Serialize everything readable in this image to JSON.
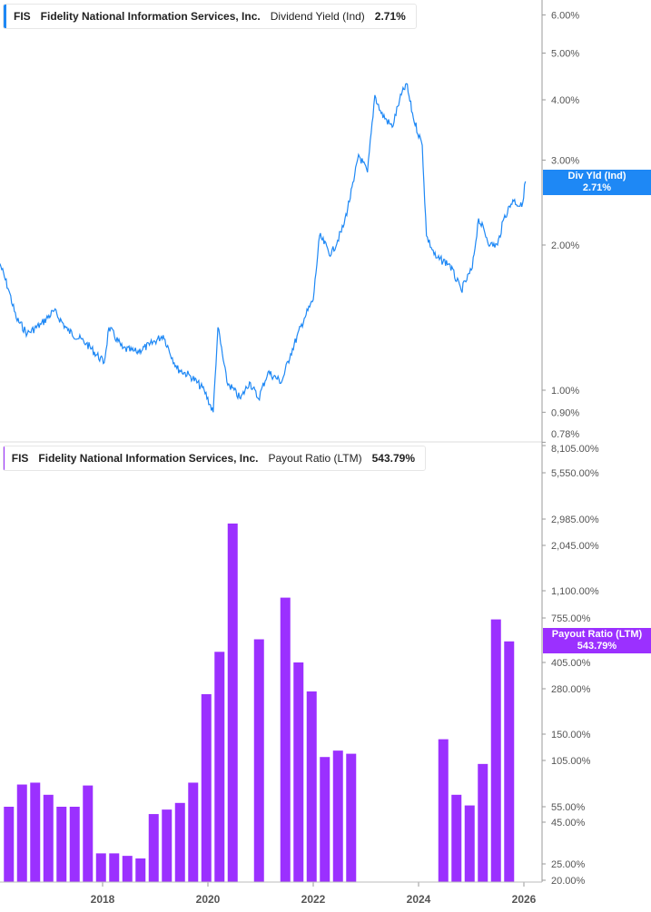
{
  "chart_data": [
    {
      "type": "line",
      "legend": {
        "ticker": "FIS",
        "company": "Fidelity National Information Services, Inc.",
        "metric": "Dividend Yield (Ind)",
        "value": "2.71%"
      },
      "price_tag": {
        "label": "Div Yld (Ind)",
        "value": "2.71%"
      },
      "color": "#1E88F5",
      "y_scale": "log",
      "y_ticks": [
        "6.00%",
        "5.00%",
        "4.00%",
        "3.00%",
        "2.00%",
        "1.00%",
        "0.90%",
        "0.78%"
      ],
      "y_tick_values": [
        6,
        5,
        4,
        3,
        2,
        1,
        0.9,
        0.78
      ],
      "x": [
        2016.05,
        2016.22,
        2016.36,
        2016.57,
        2016.83,
        2017.08,
        2017.34,
        2017.69,
        2018.03,
        2018.12,
        2018.38,
        2018.64,
        2018.89,
        2019.15,
        2019.41,
        2019.67,
        2019.93,
        2020.1,
        2020.19,
        2020.36,
        2020.62,
        2020.79,
        2020.96,
        2021.14,
        2021.4,
        2021.57,
        2021.83,
        2022.0,
        2022.12,
        2022.34,
        2022.57,
        2022.77,
        2022.86,
        2023.03,
        2023.17,
        2023.29,
        2023.5,
        2023.64,
        2023.77,
        2023.9,
        2024.07,
        2024.15,
        2024.33,
        2024.58,
        2024.81,
        2025.02,
        2025.14,
        2025.36,
        2025.5,
        2025.62,
        2025.79,
        2025.96,
        2026.03
      ],
      "y": [
        1.83,
        1.61,
        1.41,
        1.31,
        1.37,
        1.46,
        1.33,
        1.25,
        1.14,
        1.35,
        1.22,
        1.2,
        1.24,
        1.3,
        1.11,
        1.07,
        1.0,
        0.9,
        1.35,
        1.04,
        0.96,
        1.04,
        0.96,
        1.09,
        1.04,
        1.19,
        1.41,
        1.54,
        2.09,
        1.91,
        2.18,
        2.71,
        3.08,
        2.83,
        4.09,
        3.75,
        3.51,
        4.0,
        4.32,
        3.67,
        3.22,
        2.09,
        1.88,
        1.83,
        1.61,
        1.79,
        2.27,
        2.0,
        2.0,
        2.27,
        2.48,
        2.4,
        2.71
      ]
    },
    {
      "type": "bar",
      "legend": {
        "ticker": "FIS",
        "company": "Fidelity National Information Services, Inc.",
        "metric": "Payout Ratio (LTM)",
        "value": "543.79%"
      },
      "price_tag": {
        "label": "Payout Ratio (LTM)",
        "value": "543.79%"
      },
      "color": "#9B30FF",
      "y_ticks": [
        "8,105.00%",
        "5,550.00%",
        "2,985.00%",
        "2,045.00%",
        "1,100.00%",
        "755.00%",
        "405.00%",
        "280.00%",
        "150.00%",
        "105.00%",
        "55.00%",
        "45.00%",
        "25.00%",
        "20.00%"
      ],
      "y_tick_values": [
        8105,
        5550,
        2985,
        2045,
        1100,
        755,
        405,
        280,
        150,
        105,
        55,
        45,
        25,
        20
      ],
      "x_start": 2016.22,
      "x_step_years": 0.25,
      "values": [
        55,
        75,
        77,
        65,
        55,
        55,
        74,
        29,
        29,
        28,
        27,
        50,
        53,
        58,
        77,
        260,
        470,
        2800,
        null,
        560,
        null,
        1000,
        405,
        270,
        110,
        120,
        115,
        null,
        null,
        null,
        null,
        null,
        null,
        140,
        65,
        56,
        100,
        740,
        544
      ]
    }
  ],
  "x_axis": {
    "ticks": [
      "2018",
      "2020",
      "2022",
      "2024",
      "2026"
    ],
    "tick_values": [
      2018,
      2020,
      2022,
      2024,
      2026
    ]
  }
}
